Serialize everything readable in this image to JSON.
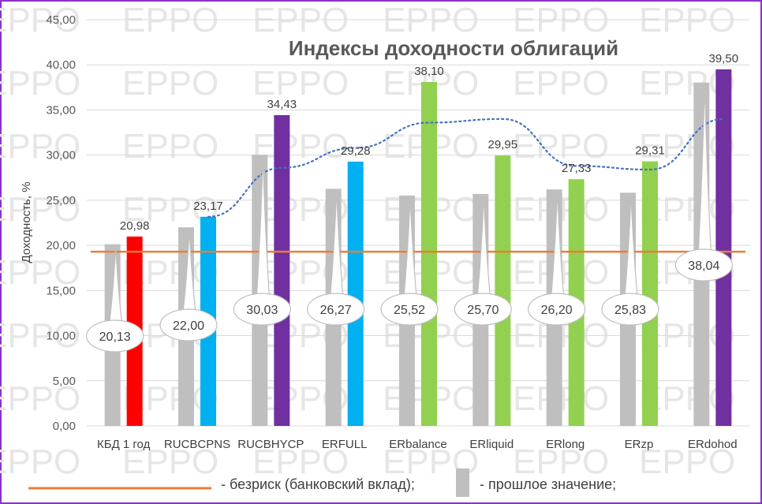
{
  "chart_data": {
    "type": "bar",
    "title": "Индексы доходности облигаций",
    "ylabel": "Доходность, %",
    "ylim": [
      0,
      45
    ],
    "yticks": [
      "0,00",
      "5,00",
      "10,00",
      "15,00",
      "20,00",
      "25,00",
      "30,00",
      "35,00",
      "40,00",
      "45,00"
    ],
    "grid": true,
    "categories": [
      "КБД 1 год",
      "RUCBCPNS",
      "RUCBHYCP",
      "ERFULL",
      "ERbalance",
      "ERliquid",
      "ERlong",
      "ERzp",
      "ERdohod"
    ],
    "series": [
      {
        "name": "прошлое значение",
        "color": "#bfbfbf",
        "values": [
          20.13,
          22.0,
          30.03,
          26.27,
          25.52,
          25.7,
          26.2,
          25.83,
          38.04
        ],
        "labels": [
          "20,13",
          "22,00",
          "30,03",
          "26,27",
          "25,52",
          "25,70",
          "26,20",
          "25,83",
          "38,04"
        ]
      },
      {
        "colors": [
          "#ff0000",
          "#00b0f0",
          "#7030a0",
          "#00b0f0",
          "#92d050",
          "#92d050",
          "#92d050",
          "#92d050",
          "#7030a0"
        ],
        "values": [
          20.98,
          23.17,
          34.43,
          29.28,
          38.1,
          29.95,
          27.33,
          29.31,
          39.5
        ],
        "labels": [
          "20,98",
          "23,17",
          "34,43",
          "29,28",
          "38,10",
          "29,95",
          "27,33",
          "29,31",
          "39,50"
        ]
      }
    ],
    "trendline": {
      "color": "#4472c4",
      "style": "dotted",
      "start_index": 1,
      "values": [
        23.17,
        28.6,
        30.8,
        33.6,
        34.0,
        28.8,
        28.4,
        34.0
      ]
    },
    "reference_line": {
      "value": 19.3,
      "color": "#ed7d31"
    },
    "watermark": "EPPO"
  },
  "legend": {
    "line_label": "- безриск (банковский вклад);",
    "bar_label": "- прошлое значение;"
  }
}
